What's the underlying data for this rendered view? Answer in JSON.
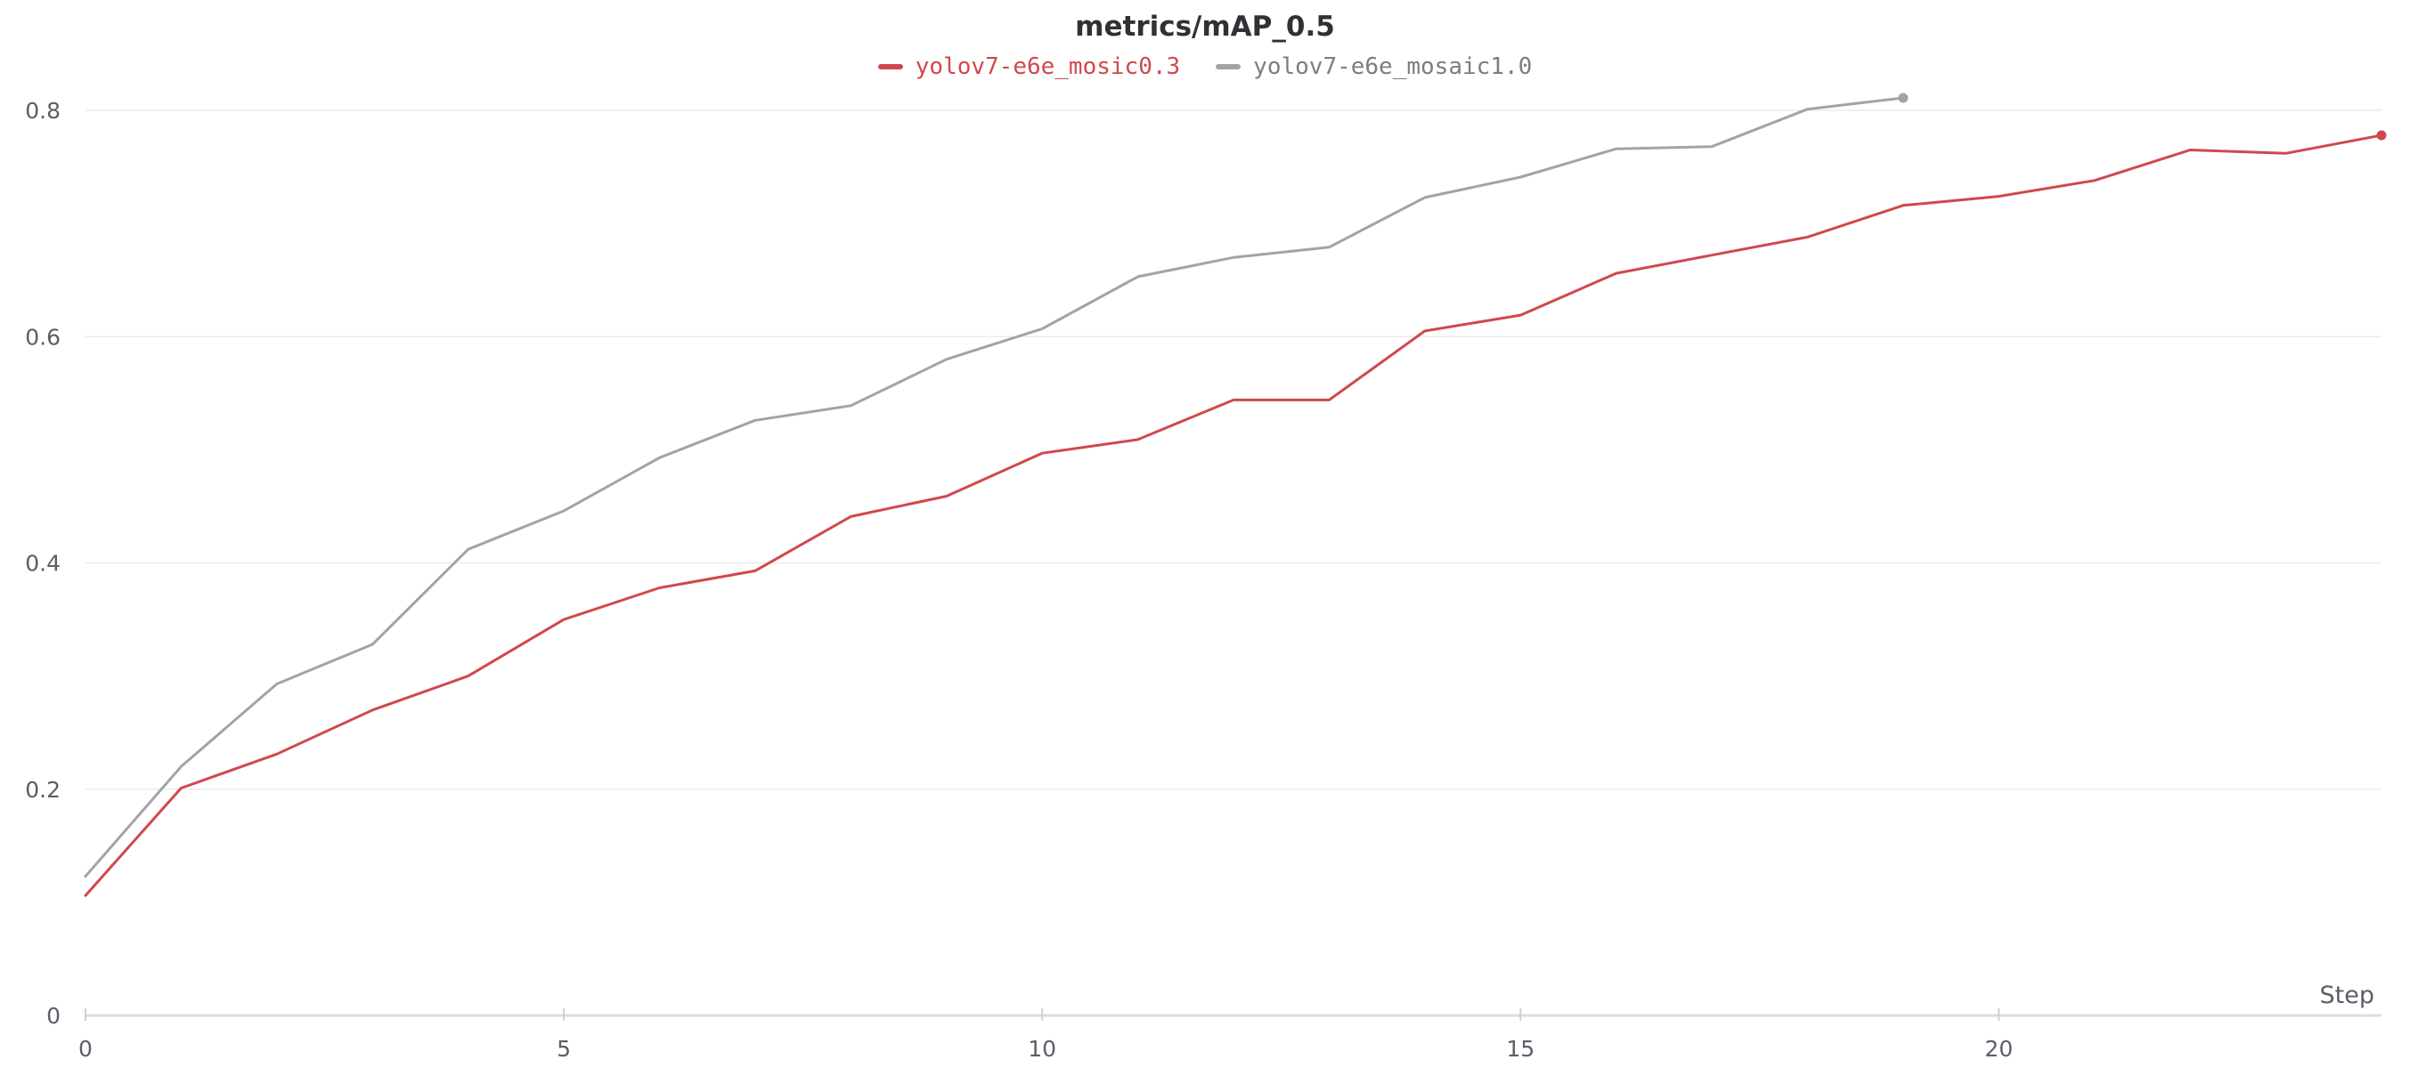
{
  "chart_data": {
    "type": "line",
    "title": "metrics/mAP_0.5",
    "xlabel": "Step",
    "ylabel": "",
    "xlim": [
      0,
      24
    ],
    "ylim": [
      0,
      0.8
    ],
    "x_ticks": [
      0,
      5,
      10,
      15,
      20
    ],
    "y_ticks": [
      0,
      0.2,
      0.4,
      0.6,
      0.8
    ],
    "y_tick_labels": [
      "0",
      "0.2",
      "0.4",
      "0.6",
      "0.8"
    ],
    "grid": "horizontal",
    "legend_position": "top-center",
    "series": [
      {
        "name": "yolov7-e6e_mosic0.3",
        "color": "#d0484d",
        "x": [
          0,
          1,
          2,
          3,
          4,
          5,
          6,
          7,
          8,
          9,
          10,
          11,
          12,
          13,
          14,
          15,
          16,
          17,
          18,
          19,
          20,
          21,
          22,
          23,
          24
        ],
        "values": [
          0.106,
          0.201,
          0.231,
          0.27,
          0.3,
          0.35,
          0.378,
          0.393,
          0.441,
          0.459,
          0.497,
          0.509,
          0.544,
          0.544,
          0.605,
          0.619,
          0.656,
          0.672,
          0.688,
          0.716,
          0.724,
          0.738,
          0.765,
          0.762,
          0.778
        ]
      },
      {
        "name": "yolov7-e6e_mosaic1.0",
        "color": "#a3a3a6",
        "x": [
          0,
          1,
          2,
          3,
          4,
          5,
          6,
          7,
          8,
          9,
          10,
          11,
          12,
          13,
          14,
          15,
          16,
          17,
          18,
          19
        ],
        "values": [
          0.123,
          0.22,
          0.293,
          0.328,
          0.412,
          0.446,
          0.493,
          0.526,
          0.539,
          0.58,
          0.607,
          0.653,
          0.67,
          0.679,
          0.723,
          0.741,
          0.766,
          0.768,
          0.801,
          0.811
        ]
      }
    ]
  }
}
